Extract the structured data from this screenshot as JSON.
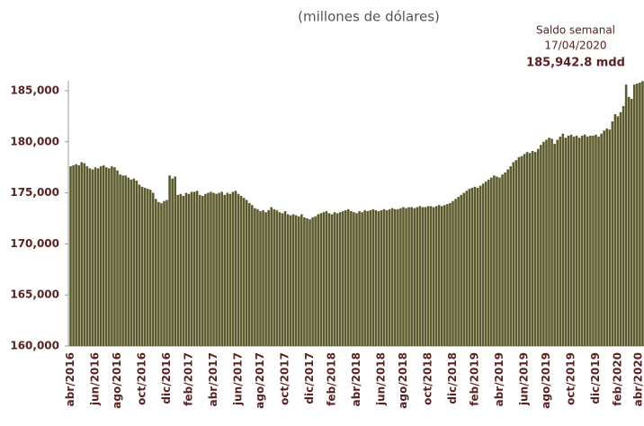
{
  "chart_data": {
    "type": "bar",
    "subtitle": "(millones de dólares)",
    "annotations": [
      "Saldo semanal",
      "17/04/2020",
      "185,942.8 mdd"
    ],
    "color": "#5b5a2c",
    "ylim": [
      160000,
      186000
    ],
    "yticks": [
      {
        "value": 160000,
        "label": "160,000"
      },
      {
        "value": 165000,
        "label": "165,000"
      },
      {
        "value": 170000,
        "label": "170,000"
      },
      {
        "value": 175000,
        "label": "175,000"
      },
      {
        "value": 180000,
        "label": "180,000"
      },
      {
        "value": 185000,
        "label": "185,000"
      }
    ],
    "categories": [
      "abr/2016",
      null,
      null,
      null,
      null,
      null,
      null,
      null,
      null,
      "jun/2016",
      null,
      null,
      null,
      null,
      null,
      null,
      null,
      "ago/2016",
      null,
      null,
      null,
      null,
      null,
      null,
      null,
      null,
      "oct/2016",
      null,
      null,
      null,
      null,
      null,
      null,
      null,
      null,
      "dic/2016",
      null,
      null,
      null,
      null,
      null,
      null,
      null,
      "feb/2017",
      null,
      null,
      null,
      null,
      null,
      null,
      null,
      null,
      "abr/2017",
      null,
      null,
      null,
      null,
      null,
      null,
      null,
      null,
      "jun/2017",
      null,
      null,
      null,
      null,
      null,
      null,
      null,
      "ago/2017",
      null,
      null,
      null,
      null,
      null,
      null,
      null,
      null,
      "oct/2017",
      null,
      null,
      null,
      null,
      null,
      null,
      null,
      null,
      "dic/2017",
      null,
      null,
      null,
      null,
      null,
      null,
      null,
      "feb/2018",
      null,
      null,
      null,
      null,
      null,
      null,
      null,
      null,
      "abr/2018",
      null,
      null,
      null,
      null,
      null,
      null,
      null,
      null,
      "jun/2018",
      null,
      null,
      null,
      null,
      null,
      null,
      null,
      "ago/2018",
      null,
      null,
      null,
      null,
      null,
      null,
      null,
      null,
      "oct/2018",
      null,
      null,
      null,
      null,
      null,
      null,
      null,
      null,
      "dic/2018",
      null,
      null,
      null,
      null,
      null,
      null,
      null,
      "feb/2019",
      null,
      null,
      null,
      null,
      null,
      null,
      null,
      null,
      "abr/2019",
      null,
      null,
      null,
      null,
      null,
      null,
      null,
      null,
      "jun/2019",
      null,
      null,
      null,
      null,
      null,
      null,
      null,
      "ago/2019",
      null,
      null,
      null,
      null,
      null,
      null,
      null,
      null,
      "oct/2019",
      null,
      null,
      null,
      null,
      null,
      null,
      null,
      null,
      "dic/2019",
      null,
      null,
      null,
      null,
      null,
      null,
      null,
      "feb/2020",
      null,
      null,
      null,
      null,
      null,
      null,
      null,
      null,
      "abr/2020"
    ],
    "values": [
      177600,
      177700,
      177800,
      177700,
      178000,
      177900,
      177600,
      177400,
      177300,
      177500,
      177400,
      177600,
      177700,
      177500,
      177400,
      177600,
      177500,
      177200,
      176800,
      176700,
      176700,
      176500,
      176300,
      176400,
      176200,
      175800,
      175600,
      175500,
      175400,
      175300,
      175000,
      174400,
      174100,
      174000,
      174200,
      174300,
      176700,
      176400,
      176600,
      174800,
      174900,
      174700,
      175000,
      174900,
      175100,
      175100,
      175200,
      174800,
      174700,
      174900,
      175000,
      175100,
      175000,
      174900,
      175000,
      175100,
      174800,
      175000,
      174900,
      175100,
      175200,
      174900,
      174700,
      174500,
      174300,
      174000,
      173800,
      173500,
      173400,
      173200,
      173300,
      173100,
      173300,
      173600,
      173400,
      173300,
      173100,
      173000,
      173200,
      172900,
      172800,
      172900,
      172800,
      172700,
      172900,
      172600,
      172500,
      172400,
      172600,
      172700,
      172900,
      173000,
      173100,
      173200,
      173000,
      172900,
      173100,
      173000,
      173100,
      173200,
      173300,
      173400,
      173200,
      173100,
      173000,
      173200,
      173100,
      173300,
      173200,
      173300,
      173400,
      173300,
      173200,
      173300,
      173400,
      173300,
      173400,
      173500,
      173400,
      173400,
      173500,
      173600,
      173500,
      173600,
      173600,
      173500,
      173600,
      173700,
      173600,
      173600,
      173700,
      173700,
      173600,
      173700,
      173800,
      173700,
      173800,
      173900,
      174000,
      174200,
      174400,
      174600,
      174800,
      175000,
      175200,
      175400,
      175500,
      175600,
      175500,
      175700,
      175900,
      176100,
      176300,
      176500,
      176700,
      176600,
      176500,
      176800,
      177000,
      177300,
      177600,
      178000,
      178200,
      178500,
      178600,
      178800,
      179000,
      178900,
      179100,
      179000,
      179300,
      179700,
      180000,
      180200,
      180400,
      180300,
      179800,
      180200,
      180500,
      180800,
      180400,
      180600,
      180700,
      180500,
      180600,
      180400,
      180600,
      180700,
      180500,
      180600,
      180600,
      180700,
      180500,
      180800,
      181100,
      181300,
      181200,
      182000,
      182700,
      182500,
      182900,
      183500,
      185600,
      184400,
      184200,
      185600,
      185700,
      185800,
      185942.8
    ]
  }
}
